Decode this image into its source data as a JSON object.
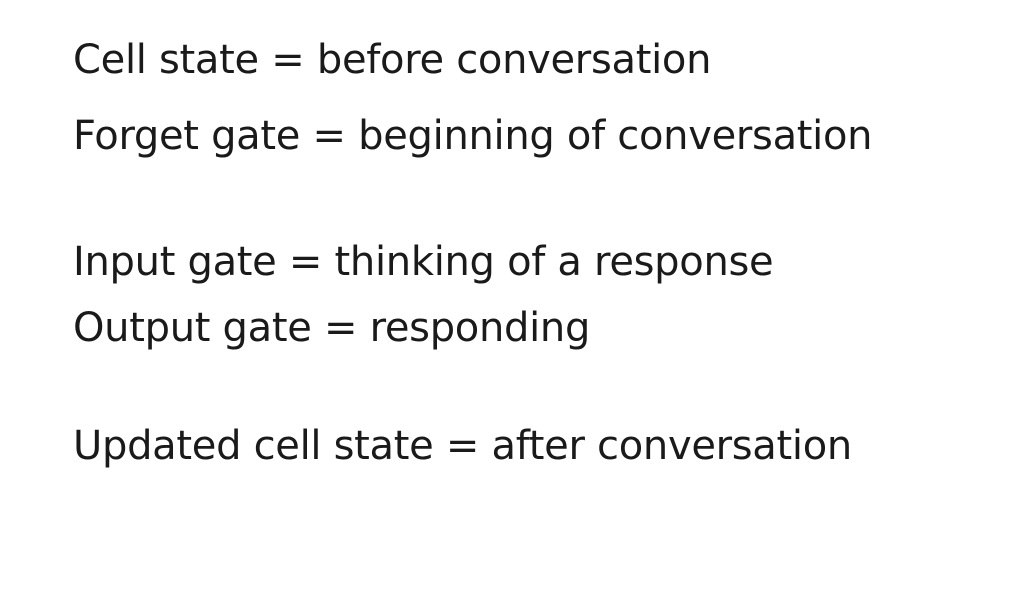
{
  "lines": {
    "cell_state": "Cell state = before conversation",
    "forget_gate": "Forget gate = beginning of conversation",
    "input_gate": "Input gate = thinking of a response",
    "output_gate": "Output gate = responding",
    "updated_cell_state": "Updated cell state = after conversation"
  },
  "colors": {
    "background": "#ffffff",
    "text": "#1a1a1a"
  }
}
